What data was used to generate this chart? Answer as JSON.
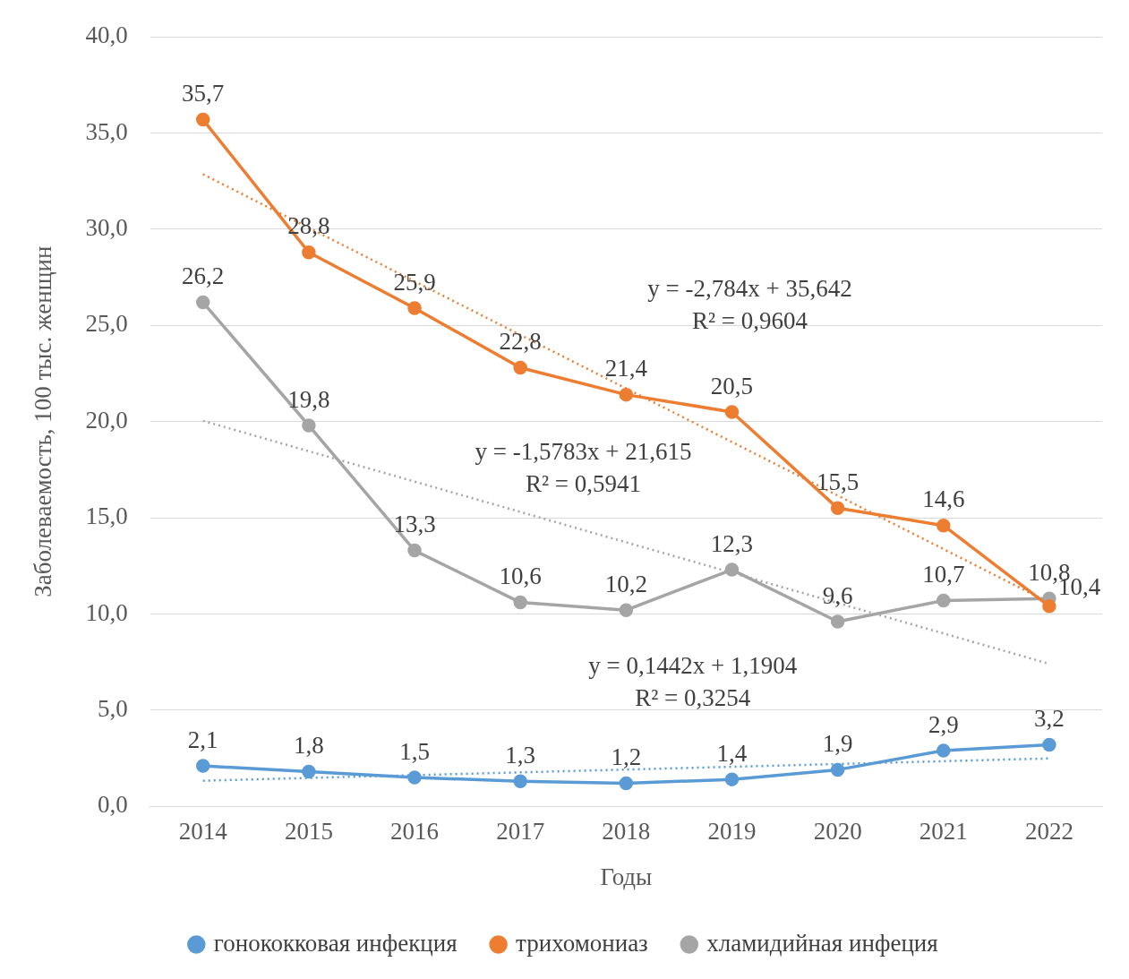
{
  "chart_data": {
    "type": "line",
    "xlabel": "Годы",
    "ylabel": "Заболеваемость, 100 тыс. женщин",
    "categories": [
      "2014",
      "2015",
      "2016",
      "2017",
      "2018",
      "2019",
      "2020",
      "2021",
      "2022"
    ],
    "ylim": [
      0,
      40
    ],
    "yticks": [
      {
        "value": 0,
        "label": "0,0"
      },
      {
        "value": 5,
        "label": "5,0"
      },
      {
        "value": 10,
        "label": "10,0"
      },
      {
        "value": 15,
        "label": "15,0"
      },
      {
        "value": 20,
        "label": "20,0"
      },
      {
        "value": 25,
        "label": "25,0"
      },
      {
        "value": 30,
        "label": "30,0"
      },
      {
        "value": 35,
        "label": "35,0"
      },
      {
        "value": 40,
        "label": "40,0"
      }
    ],
    "grid": "y",
    "legend": "bottom",
    "marker": "circle",
    "line_style": "solid",
    "series": [
      {
        "name": "гонококковая инфекция",
        "color": "#5b9bd5",
        "values": [
          2.1,
          1.8,
          1.5,
          1.3,
          1.2,
          1.4,
          1.9,
          2.9,
          3.2
        ],
        "value_labels": [
          "2,1",
          "1,8",
          "1,5",
          "1,3",
          "1,2",
          "1,4",
          "1,9",
          "2,9",
          "3,2"
        ]
      },
      {
        "name": "трихомониаз",
        "color": "#ed7d31",
        "values": [
          35.7,
          28.8,
          25.9,
          22.8,
          21.4,
          20.5,
          15.5,
          14.6,
          10.4
        ],
        "value_labels": [
          "35,7",
          "28,8",
          "25,9",
          "22,8",
          "21,4",
          "20,5",
          "15,5",
          "14,6",
          "10,4"
        ]
      },
      {
        "name": "хламидийная инфеция",
        "color": "#a5a5a5",
        "values": [
          26.2,
          19.8,
          13.3,
          10.6,
          10.2,
          12.3,
          9.6,
          10.7,
          10.8
        ],
        "value_labels": [
          "26,2",
          "19,8",
          "13,3",
          "10,6",
          "10,2",
          "12,3",
          "9,6",
          "10,7",
          "10,8"
        ]
      },
      {
        "type": "line",
        "color": "#5b9bd5",
        "line_style": "dotted",
        "marker": "none",
        "values": [
          1.33,
          null,
          null,
          null,
          null,
          null,
          null,
          null,
          2.49
        ]
      },
      {
        "type": "line",
        "color": "#ed7d31",
        "line_style": "dotted",
        "marker": "none",
        "values": [
          32.86,
          null,
          null,
          null,
          null,
          null,
          null,
          null,
          10.59
        ]
      },
      {
        "type": "line",
        "color": "#a5a5a5",
        "line_style": "dotted",
        "marker": "none",
        "values": [
          20.04,
          null,
          null,
          null,
          null,
          null,
          null,
          null,
          7.41
        ]
      }
    ],
    "annotations": [
      "y = -2,784x + 35,642\nR² = 0,9604",
      "y = -1,5783x + 21,615\nR² = 0,5941",
      "y = 0,1442x + 1,1904\nR² = 0,3254"
    ]
  }
}
